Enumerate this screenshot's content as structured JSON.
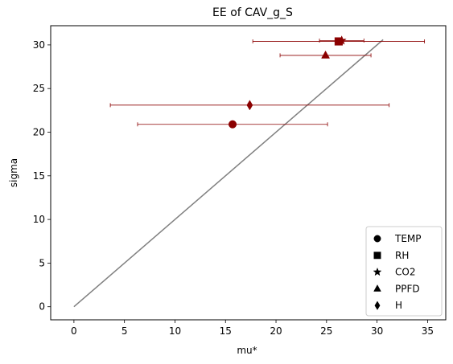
{
  "chart_data": {
    "type": "scatter",
    "title": "EE of CAV_g_S",
    "xlabel": "mu*",
    "ylabel": "sigma",
    "xlim": [
      -2.3,
      36.8
    ],
    "ylim": [
      -1.5,
      32.2
    ],
    "xticks": [
      0,
      5,
      10,
      15,
      20,
      25,
      30,
      35
    ],
    "yticks": [
      0,
      5,
      10,
      15,
      20,
      25,
      30
    ],
    "grid": false,
    "legend_position": "lower-right",
    "marker_color": "#8b0000",
    "line_color": "#808080",
    "reference_line": {
      "x": [
        0,
        30.6
      ],
      "y": [
        0,
        30.6
      ]
    },
    "series": [
      {
        "name": "TEMP",
        "marker": "circle",
        "mu_star": 15.7,
        "sigma": 20.9,
        "mu_star_err": 9.4
      },
      {
        "name": "RH",
        "marker": "square",
        "mu_star": 26.2,
        "sigma": 30.4,
        "mu_star_err": 8.5
      },
      {
        "name": "CO2",
        "marker": "star",
        "mu_star": 26.5,
        "sigma": 30.5,
        "mu_star_err": 2.2
      },
      {
        "name": "PPFD",
        "marker": "triangle",
        "mu_star": 24.9,
        "sigma": 28.8,
        "mu_star_err": 4.5
      },
      {
        "name": "H",
        "marker": "diamond",
        "mu_star": 17.4,
        "sigma": 23.1,
        "mu_star_err": 13.8
      }
    ]
  }
}
